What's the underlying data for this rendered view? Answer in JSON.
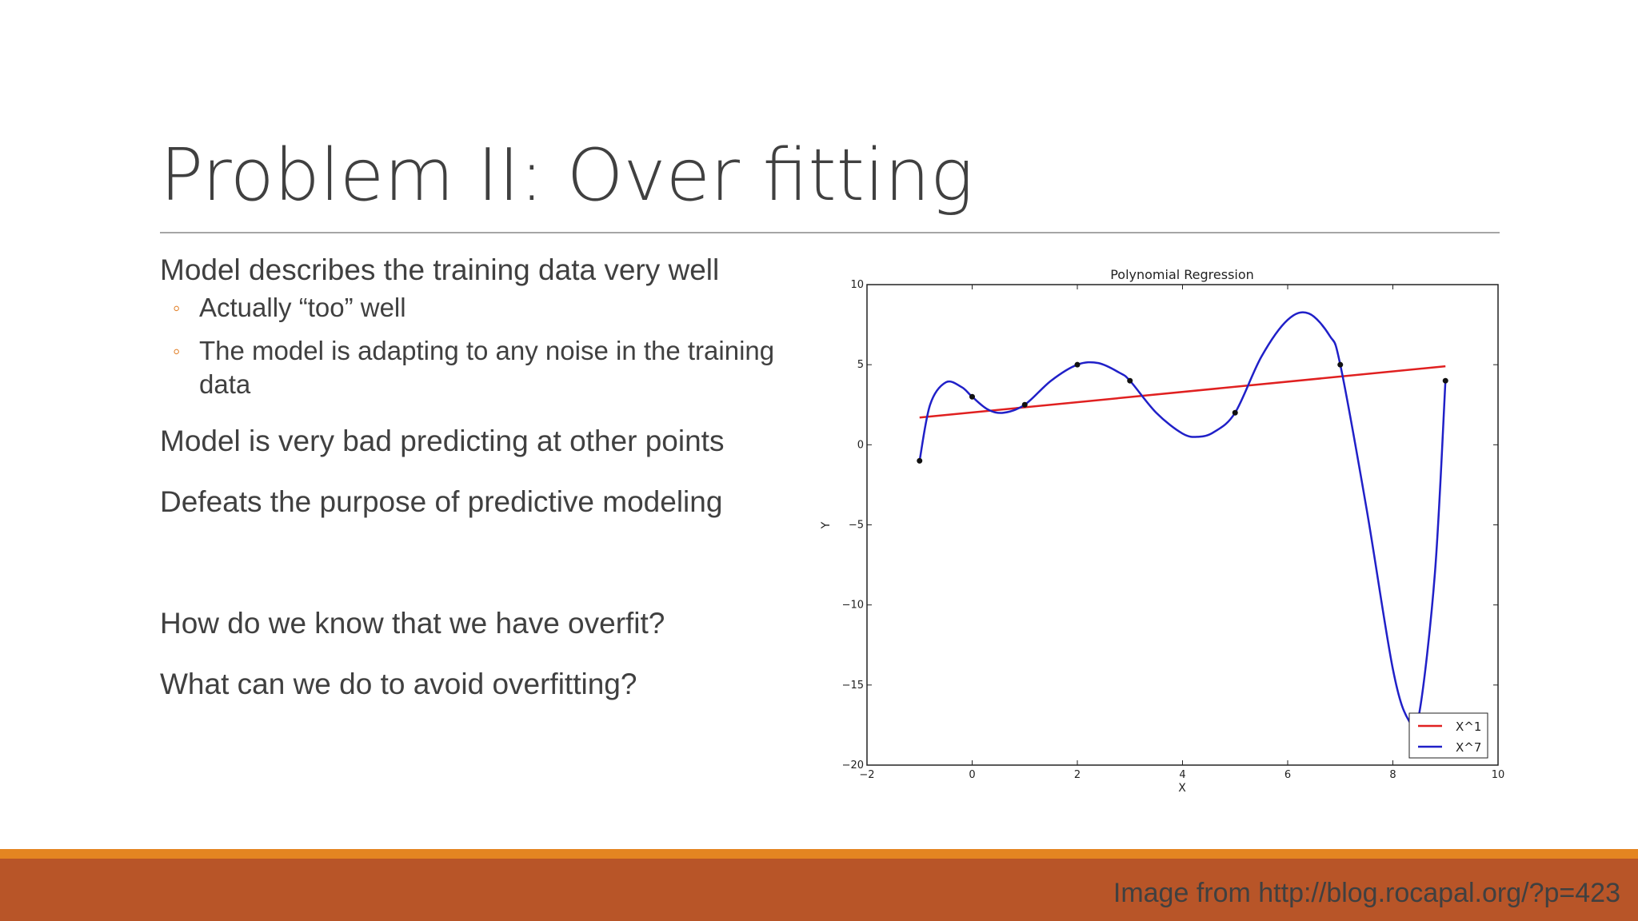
{
  "slide": {
    "title": "Problem II: Over fitting",
    "bullets": [
      "Model describes the training data very well",
      "Actually “too” well",
      "The model is adapting to any noise in the training data",
      "Model is very bad predicting at other points",
      "Defeats the purpose of predictive modeling",
      "How do we know that we have overfit?",
      "What can we do to avoid overfitting?"
    ],
    "credit": "Image from http://blog.rocapal.org/?p=423"
  },
  "colors": {
    "accent": "#e48521",
    "footer": "#b85528",
    "linear": "#e02020",
    "poly": "#2020c8"
  },
  "chart_data": {
    "type": "line",
    "title": "Polynomial Regression",
    "xlabel": "X",
    "ylabel": "Y",
    "xlim": [
      -2,
      10
    ],
    "ylim": [
      -20,
      10
    ],
    "xticks": [
      -2,
      0,
      2,
      4,
      6,
      8,
      10
    ],
    "yticks": [
      -20,
      -15,
      -10,
      -5,
      0,
      5,
      10
    ],
    "legend_position": "lower-right",
    "points": {
      "x": [
        -1,
        0,
        1,
        2,
        3,
        5,
        7,
        9
      ],
      "y": [
        -1,
        3,
        2.5,
        5,
        4,
        2,
        5,
        4
      ]
    },
    "series": [
      {
        "name": "X^1",
        "color": "#e02020",
        "x": [
          -1,
          9
        ],
        "y": [
          1.7,
          4.9
        ]
      },
      {
        "name": "X^7",
        "color": "#2020c8",
        "x": [
          -1,
          -0.8,
          -0.5,
          -0.2,
          0,
          0.3,
          0.6,
          1,
          1.5,
          2,
          2.4,
          2.8,
          3,
          3.5,
          4,
          4.3,
          4.6,
          5,
          5.5,
          6,
          6.4,
          6.8,
          7,
          7.5,
          8,
          8.3,
          8.5,
          8.8,
          9
        ],
        "y": [
          -1,
          2.5,
          3.9,
          3.6,
          3,
          2.2,
          2.0,
          2.5,
          4.0,
          5.0,
          5.1,
          4.5,
          4.0,
          2.0,
          0.7,
          0.5,
          0.8,
          2.0,
          5.5,
          7.8,
          8.2,
          6.8,
          5.0,
          -4.0,
          -14.0,
          -17.2,
          -16.8,
          -8.0,
          4.0
        ]
      }
    ]
  }
}
